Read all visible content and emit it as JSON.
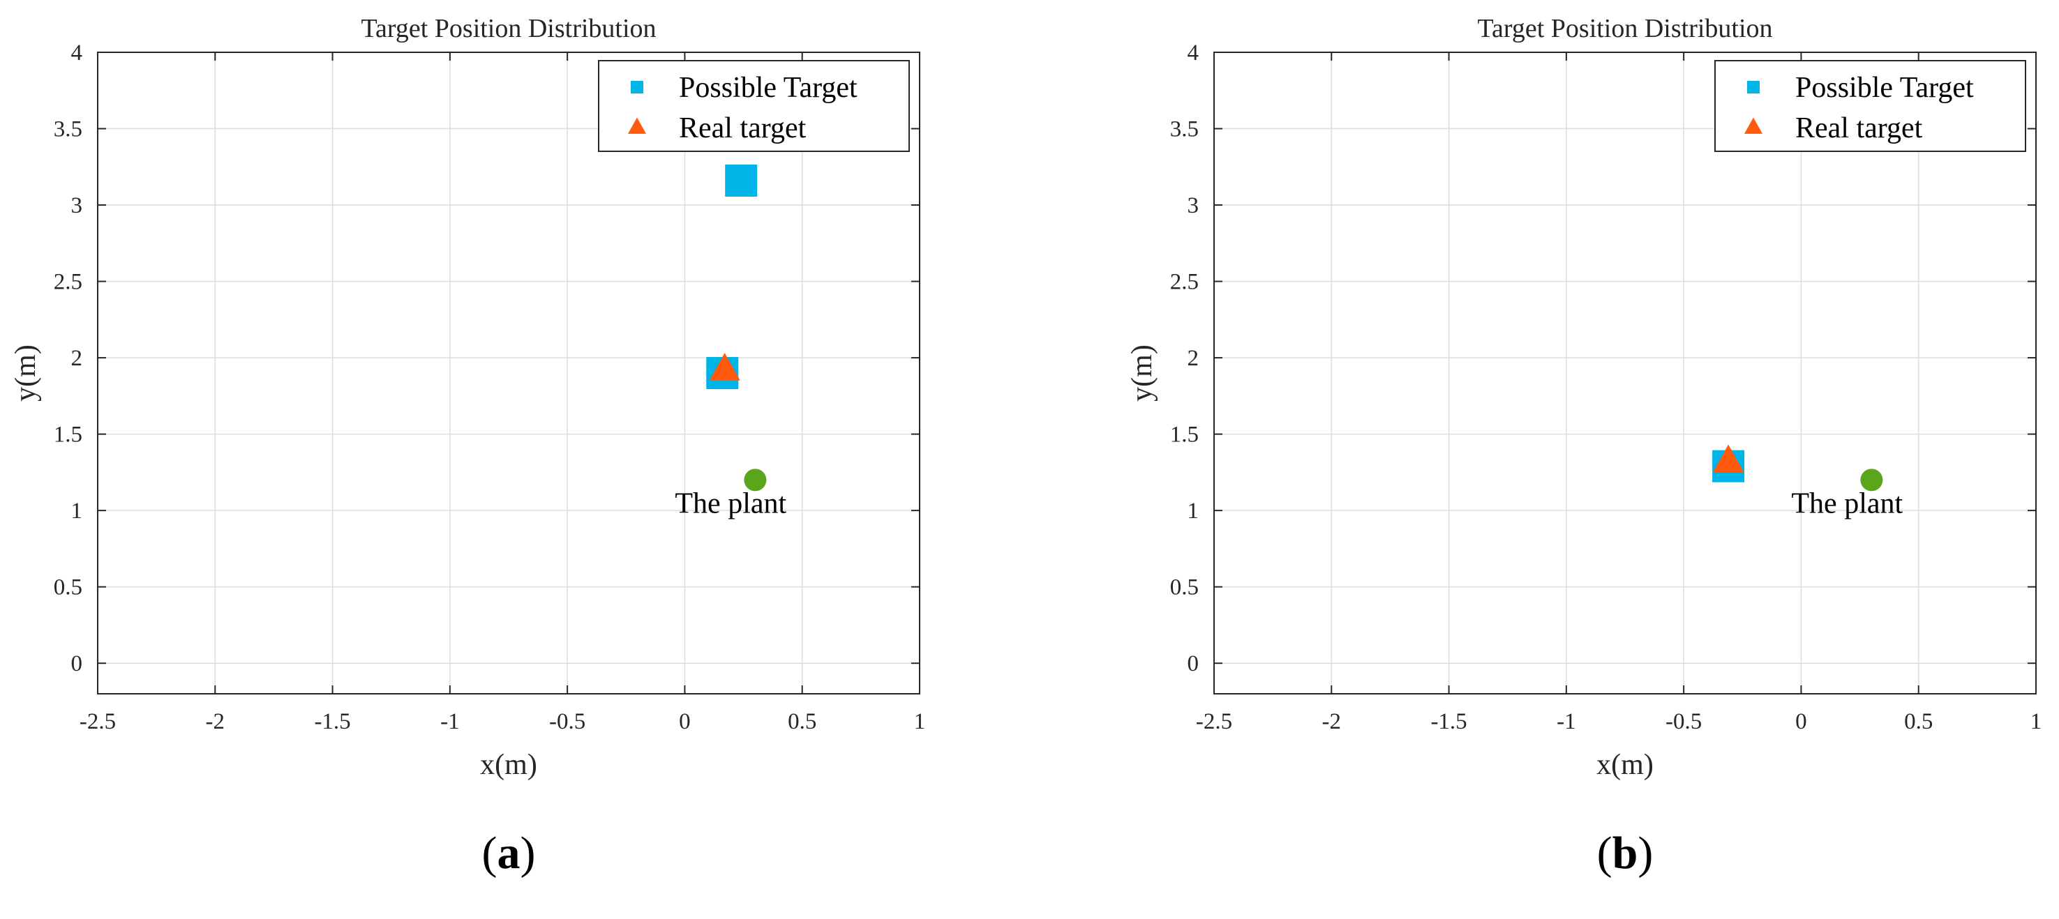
{
  "chart_data": [
    {
      "type": "scatter",
      "panel_label": "a",
      "title": "Target Position Distribution",
      "xlabel": "x(m)",
      "ylabel": "y(m)",
      "xlim": [
        -2.5,
        1
      ],
      "ylim": [
        -0.2,
        4
      ],
      "xticks": [
        -2.5,
        -2,
        -1.5,
        -1,
        -0.5,
        0,
        0.5,
        1
      ],
      "xtick_labels": [
        "-2.5",
        "-2",
        "-1.5",
        "-1",
        "-0.5",
        "0",
        "0.5",
        "1"
      ],
      "yticks": [
        0,
        0.5,
        1,
        1.5,
        2,
        2.5,
        3,
        3.5,
        4
      ],
      "ytick_labels": [
        "0",
        "0.5",
        "1",
        "1.5",
        "2",
        "2.5",
        "3",
        "3.5",
        "4"
      ],
      "grid": true,
      "legend_position": "top-right",
      "legend": [
        "Possible Target",
        "Real target"
      ],
      "series": [
        {
          "name": "Possible Target",
          "marker": "square",
          "color": "#00b4e8",
          "points": [
            [
              0.24,
              3.16
            ],
            [
              0.16,
              1.9
            ]
          ]
        },
        {
          "name": "Real target",
          "marker": "triangle",
          "color": "#ff5a0e",
          "points": [
            [
              0.17,
              1.92
            ]
          ]
        },
        {
          "name": "The plant",
          "marker": "circle",
          "color": "#5aa51c",
          "points": [
            [
              0.3,
              1.2
            ]
          ]
        }
      ],
      "annotations": [
        {
          "text": "The plant",
          "x": 0.3,
          "y": 1.2
        }
      ]
    },
    {
      "type": "scatter",
      "panel_label": "b",
      "title": "Target Position Distribution",
      "xlabel": "x(m)",
      "ylabel": "y(m)",
      "xlim": [
        -2.5,
        1
      ],
      "ylim": [
        -0.2,
        4
      ],
      "xticks": [
        -2.5,
        -2,
        -1.5,
        -1,
        -0.5,
        0,
        0.5,
        1
      ],
      "xtick_labels": [
        "-2.5",
        "-2",
        "-1.5",
        "-1",
        "-0.5",
        "0",
        "0.5",
        "1"
      ],
      "yticks": [
        0,
        0.5,
        1,
        1.5,
        2,
        2.5,
        3,
        3.5,
        4
      ],
      "ytick_labels": [
        "0",
        "0.5",
        "1",
        "1.5",
        "2",
        "2.5",
        "3",
        "3.5",
        "4"
      ],
      "grid": true,
      "legend_position": "top-right",
      "legend": [
        "Possible Target",
        "Real target"
      ],
      "series": [
        {
          "name": "Possible Target",
          "marker": "square",
          "color": "#00b4e8",
          "points": [
            [
              -0.31,
              1.29
            ]
          ]
        },
        {
          "name": "Real target",
          "marker": "triangle",
          "color": "#ff5a0e",
          "points": [
            [
              -0.31,
              1.32
            ]
          ]
        },
        {
          "name": "The plant",
          "marker": "circle",
          "color": "#5aa51c",
          "points": [
            [
              0.3,
              1.2
            ]
          ]
        }
      ],
      "annotations": [
        {
          "text": "The plant",
          "x": 0.3,
          "y": 1.2
        }
      ]
    }
  ]
}
